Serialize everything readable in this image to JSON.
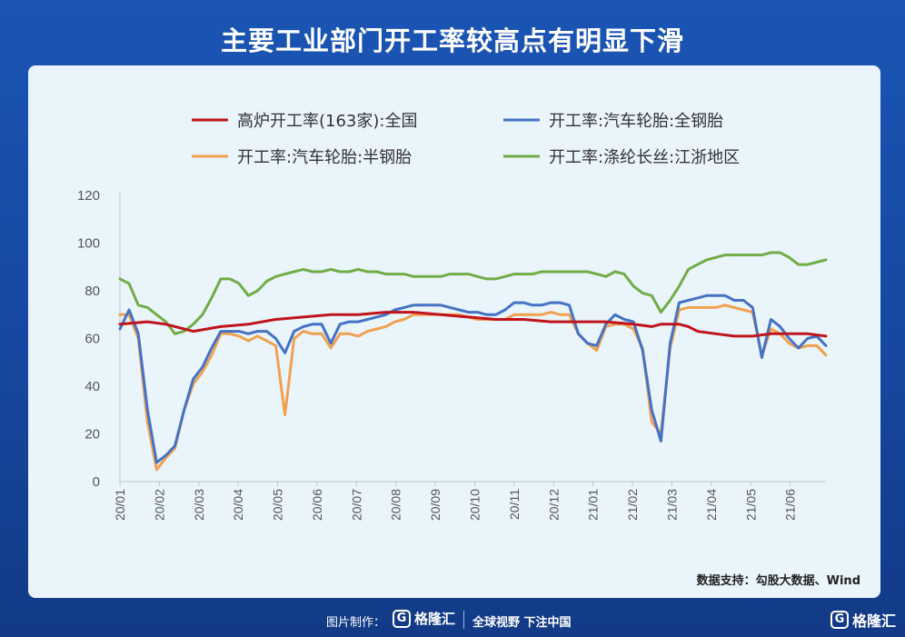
{
  "title": "主要工业部门开工率较高点有明显下滑",
  "source_text": "数据支持：勾股大数据、Wind",
  "footer": {
    "made_by": "图片制作：",
    "brand": "格隆汇",
    "slogan": "全球视野 下注中国",
    "corner_brand": "格隆汇"
  },
  "colors": {
    "series_red": "#c0141c",
    "series_blue": "#4472c4",
    "series_orange": "#f0a150",
    "series_green": "#70ad47"
  },
  "chart_data": {
    "type": "line",
    "ylim": [
      0,
      120
    ],
    "yticks": [
      0,
      20,
      40,
      60,
      80,
      100,
      120
    ],
    "xlim": [
      0,
      77
    ],
    "xtick_positions": [
      0,
      4.3,
      8.6,
      12.9,
      17.2,
      21.5,
      25.8,
      30.1,
      34.4,
      38.7,
      43.0,
      47.3,
      51.6,
      55.9,
      60.2,
      64.5,
      68.8,
      73.1
    ],
    "xtick_labels": [
      "20/01",
      "20/02",
      "20/03",
      "20/04",
      "20/05",
      "20/06",
      "20/07",
      "20/08",
      "20/09",
      "20/10",
      "20/11",
      "20/12",
      "21/01",
      "21/02",
      "21/03",
      "21/04",
      "21/05",
      "21/06"
    ],
    "legend_placement": "top",
    "grid": false,
    "series": [
      {
        "name": "高炉开工率(163家):全国",
        "color_key": "series_red",
        "x": [
          0,
          3,
          5,
          8,
          11,
          14,
          17,
          20,
          23,
          26,
          29,
          32,
          35,
          38,
          41,
          44,
          47,
          50,
          53,
          56,
          58,
          59,
          60,
          61,
          62,
          63,
          65,
          67,
          69,
          71,
          73,
          75,
          77
        ],
        "values": [
          66,
          67,
          66,
          63,
          65,
          66,
          68,
          69,
          70,
          70,
          71,
          71,
          70,
          69,
          68,
          68,
          67,
          67,
          67,
          66,
          65,
          66,
          66,
          66,
          65,
          63,
          62,
          61,
          61,
          62,
          62,
          62,
          61
        ]
      },
      {
        "name": "开工率:汽车轮胎:全钢胎",
        "color_key": "series_blue",
        "x": [
          0,
          1,
          2,
          3,
          4,
          5,
          6,
          7,
          8,
          9,
          10,
          11,
          12,
          13,
          14,
          15,
          16,
          17,
          18,
          19,
          20,
          21,
          22,
          23,
          24,
          25,
          26,
          27,
          28,
          29,
          30,
          31,
          32,
          33,
          34,
          35,
          36,
          37,
          38,
          39,
          40,
          41,
          42,
          43,
          44,
          45,
          46,
          47,
          48,
          49,
          50,
          51,
          52,
          53,
          54,
          55,
          56,
          57,
          58,
          59,
          60,
          61,
          62,
          63,
          64,
          65,
          66,
          67,
          68,
          69,
          70,
          71,
          72,
          73,
          74,
          75,
          76,
          77
        ],
        "values": [
          64,
          72,
          62,
          30,
          8,
          11,
          15,
          30,
          43,
          48,
          56,
          63,
          63,
          63,
          62,
          63,
          63,
          60,
          54,
          63,
          65,
          66,
          66,
          58,
          66,
          67,
          67,
          68,
          69,
          70,
          72,
          73,
          74,
          74,
          74,
          74,
          73,
          72,
          71,
          71,
          70,
          70,
          72,
          75,
          75,
          74,
          74,
          75,
          75,
          74,
          62,
          58,
          57,
          66,
          70,
          68,
          67,
          55,
          30,
          17,
          58,
          75,
          76,
          77,
          78,
          78,
          78,
          76,
          76,
          73,
          52,
          68,
          65,
          60,
          56,
          60,
          61,
          57
        ]
      },
      {
        "name": "开工率:汽车轮胎:半钢胎",
        "color_key": "series_orange",
        "x": [
          0,
          1,
          2,
          3,
          4,
          5,
          6,
          7,
          8,
          9,
          10,
          11,
          12,
          13,
          14,
          15,
          16,
          17,
          18,
          19,
          20,
          21,
          22,
          23,
          24,
          25,
          26,
          27,
          28,
          29,
          30,
          31,
          32,
          33,
          34,
          35,
          36,
          37,
          38,
          39,
          40,
          41,
          42,
          43,
          44,
          45,
          46,
          47,
          48,
          49,
          50,
          51,
          52,
          53,
          54,
          55,
          56,
          57,
          58,
          59,
          60,
          61,
          62,
          63,
          64,
          65,
          66,
          67,
          68,
          69,
          70,
          71,
          72,
          73,
          74,
          75,
          76,
          77
        ],
        "values": [
          70,
          70,
          60,
          25,
          5,
          10,
          14,
          30,
          41,
          46,
          53,
          62,
          62,
          61,
          59,
          61,
          59,
          57,
          28,
          60,
          63,
          62,
          62,
          56,
          62,
          62,
          61,
          63,
          64,
          65,
          67,
          68,
          70,
          70,
          70,
          70,
          70,
          70,
          69,
          68,
          68,
          68,
          68,
          70,
          70,
          70,
          70,
          71,
          70,
          70,
          62,
          58,
          55,
          65,
          66,
          66,
          64,
          56,
          25,
          20,
          56,
          72,
          73,
          73,
          73,
          73,
          74,
          73,
          72,
          71,
          53,
          64,
          62,
          58,
          56,
          57,
          57,
          53
        ]
      },
      {
        "name": "开工率:涤纶长丝:江浙地区",
        "color_key": "series_green",
        "x": [
          0,
          1,
          2,
          3,
          4,
          5,
          6,
          7,
          8,
          9,
          10,
          11,
          12,
          13,
          14,
          15,
          16,
          17,
          18,
          19,
          20,
          21,
          22,
          23,
          24,
          25,
          26,
          27,
          28,
          29,
          30,
          31,
          32,
          33,
          34,
          35,
          36,
          37,
          38,
          39,
          40,
          41,
          42,
          43,
          44,
          45,
          46,
          47,
          48,
          49,
          50,
          51,
          52,
          53,
          54,
          55,
          56,
          57,
          58,
          59,
          60,
          61,
          62,
          63,
          64,
          65,
          66,
          67,
          68,
          69,
          70,
          71,
          72,
          73,
          74,
          75,
          76,
          77
        ],
        "values": [
          85,
          83,
          74,
          73,
          70,
          67,
          62,
          63,
          66,
          70,
          77,
          85,
          85,
          83,
          78,
          80,
          84,
          86,
          87,
          88,
          89,
          88,
          88,
          89,
          88,
          88,
          89,
          88,
          88,
          87,
          87,
          87,
          86,
          86,
          86,
          86,
          87,
          87,
          87,
          86,
          85,
          85,
          86,
          87,
          87,
          87,
          88,
          88,
          88,
          88,
          88,
          88,
          87,
          86,
          88,
          87,
          82,
          79,
          78,
          71,
          76,
          82,
          89,
          91,
          93,
          94,
          95,
          95,
          95,
          95,
          95,
          96,
          96,
          94,
          91,
          91,
          92,
          93
        ]
      }
    ]
  }
}
